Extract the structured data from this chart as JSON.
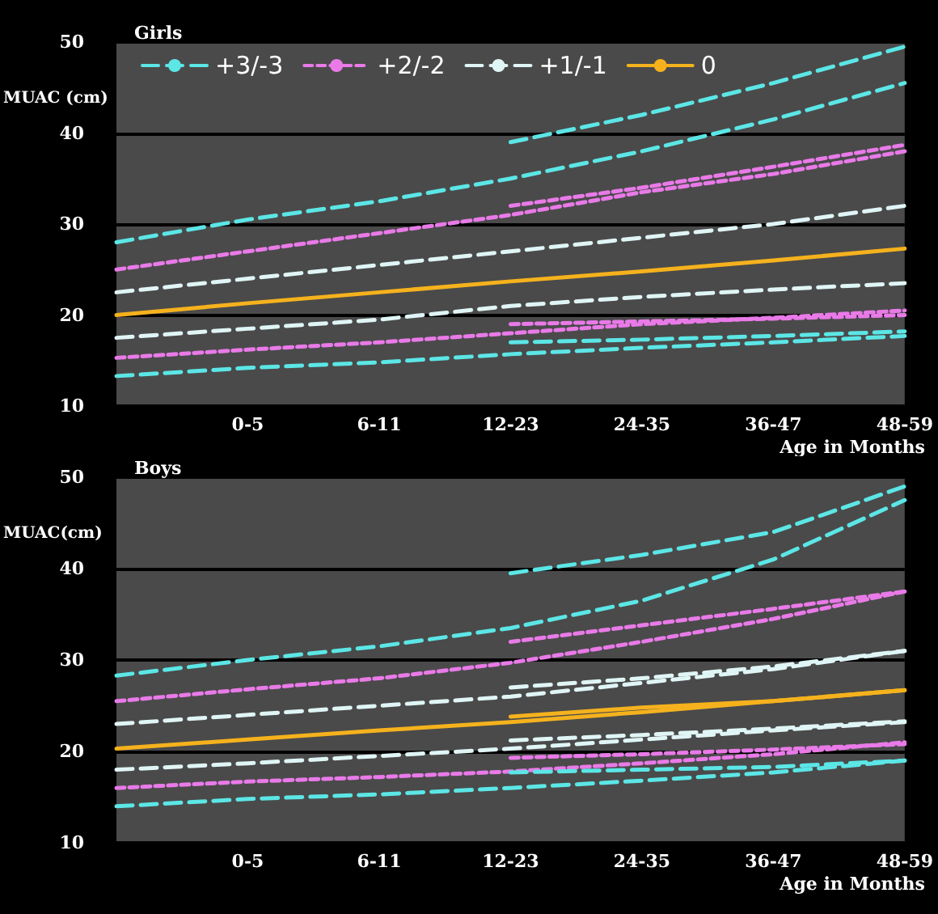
{
  "chart_data": [
    {
      "type": "line",
      "title": "Girls",
      "ylabel": "MUAC (cm)",
      "xlabel": "Age in Months",
      "categories": [
        null,
        "0-5",
        "6-11",
        "12-23",
        "24-35",
        "36-47",
        "48-59"
      ],
      "series": [
        {
          "name": "+3/-3",
          "color": "#5ce6e6",
          "line_style": "dashed",
          "values": [
            28,
            30.5,
            32.5,
            35,
            38,
            41.5,
            45.5
          ]
        },
        {
          "name": "+2/-2",
          "color": "#e97ae8",
          "line_style": "dotted",
          "values": [
            25,
            27,
            29,
            31,
            33.5,
            35.5,
            38
          ]
        },
        {
          "name": "+1/-1",
          "color": "#e0f5f5",
          "line_style": "dashed",
          "values": [
            22.5,
            24,
            25.5,
            27,
            28.5,
            30,
            32
          ]
        },
        {
          "name": "0",
          "color": "#f5b21d",
          "line_style": "solid",
          "values": [
            20,
            21.3,
            22.5,
            23.7,
            24.8,
            26,
            27.3
          ]
        },
        {
          "color": "#e0f5f5",
          "line_style": "dashed",
          "values": [
            17.5,
            18.5,
            19.5,
            21,
            22,
            22.8,
            23.5
          ]
        },
        {
          "color": "#e97ae8",
          "line_style": "dotted",
          "values": [
            15.3,
            16.2,
            17,
            18,
            19,
            19.7,
            20.5
          ]
        },
        {
          "color": "#5ce6e6",
          "line_style": "dashed",
          "values": [
            13.3,
            14.2,
            14.8,
            15.7,
            16.4,
            17,
            17.7
          ]
        },
        {
          "color": "#5ce6e6",
          "line_style": "dashed",
          "values": [
            null,
            null,
            null,
            39,
            42,
            45.5,
            49.5
          ]
        },
        {
          "color": "#e97ae8",
          "line_style": "dotted",
          "values": [
            null,
            null,
            null,
            32,
            34,
            36.3,
            38.7
          ]
        },
        {
          "color": "#e97ae8",
          "line_style": "dotted",
          "values": [
            null,
            null,
            null,
            19,
            19.3,
            19.6,
            20
          ]
        },
        {
          "color": "#5ce6e6",
          "line_style": "dashed",
          "values": [
            null,
            null,
            null,
            17,
            17.3,
            17.7,
            18.2
          ]
        }
      ],
      "ylim": [
        10,
        50
      ],
      "yticks": [
        10,
        20,
        30,
        40,
        50
      ],
      "grid": "y",
      "legend": "top left",
      "marker": "none"
    },
    {
      "type": "line",
      "title": "Boys",
      "ylabel": "MUAC(cm)",
      "xlabel": "Age in Months",
      "categories": [
        null,
        "0-5",
        "6-11",
        "12-23",
        "24-35",
        "36-47",
        "48-59"
      ],
      "series": [
        {
          "color": "#5ce6e6",
          "line_style": "dashed",
          "values": [
            28.3,
            30,
            31.5,
            33.5,
            36.5,
            41,
            47.5
          ]
        },
        {
          "color": "#e97ae8",
          "line_style": "dotted",
          "values": [
            25.5,
            26.8,
            28,
            29.7,
            32,
            34.5,
            37.5
          ]
        },
        {
          "color": "#e0f5f5",
          "line_style": "dashed",
          "values": [
            23,
            24,
            25,
            26,
            27.5,
            29,
            31
          ]
        },
        {
          "color": "#f5b21d",
          "line_style": "solid",
          "values": [
            20.3,
            21.3,
            22.3,
            23.2,
            24.3,
            25.5,
            26.7
          ]
        },
        {
          "color": "#e0f5f5",
          "line_style": "dashed",
          "values": [
            18,
            18.7,
            19.5,
            20.3,
            21.3,
            22.3,
            23.2
          ]
        },
        {
          "color": "#e97ae8",
          "line_style": "dotted",
          "values": [
            16,
            16.7,
            17.2,
            17.8,
            18.7,
            19.7,
            21
          ]
        },
        {
          "color": "#5ce6e6",
          "line_style": "dashed",
          "values": [
            14,
            14.8,
            15.3,
            16,
            16.8,
            17.7,
            19
          ]
        },
        {
          "color": "#5ce6e6",
          "line_style": "dashed",
          "values": [
            null,
            null,
            null,
            39.5,
            41.5,
            44,
            49
          ]
        },
        {
          "color": "#e97ae8",
          "line_style": "dotted",
          "values": [
            null,
            null,
            null,
            32,
            33.8,
            35.6,
            37.5
          ]
        },
        {
          "color": "#e0f5f5",
          "line_style": "dashed",
          "values": [
            null,
            null,
            null,
            27,
            28,
            29.3,
            31
          ]
        },
        {
          "color": "#f5b21d",
          "line_style": "solid",
          "values": [
            null,
            null,
            null,
            23.8,
            24.8,
            25.5,
            26.7
          ]
        },
        {
          "color": "#e0f5f5",
          "line_style": "dashed",
          "values": [
            null,
            null,
            null,
            21.2,
            21.8,
            22.5,
            23.3
          ]
        },
        {
          "color": "#e97ae8",
          "line_style": "dotted",
          "values": [
            null,
            null,
            null,
            19.3,
            19.7,
            20.2,
            20.8
          ]
        },
        {
          "color": "#5ce6e6",
          "line_style": "dashed",
          "values": [
            null,
            null,
            null,
            17.7,
            18,
            18.3,
            19
          ]
        }
      ],
      "ylim": [
        10,
        50
      ],
      "yticks": [
        10,
        20,
        30,
        40,
        50
      ],
      "grid": "y",
      "marker": "none"
    }
  ]
}
